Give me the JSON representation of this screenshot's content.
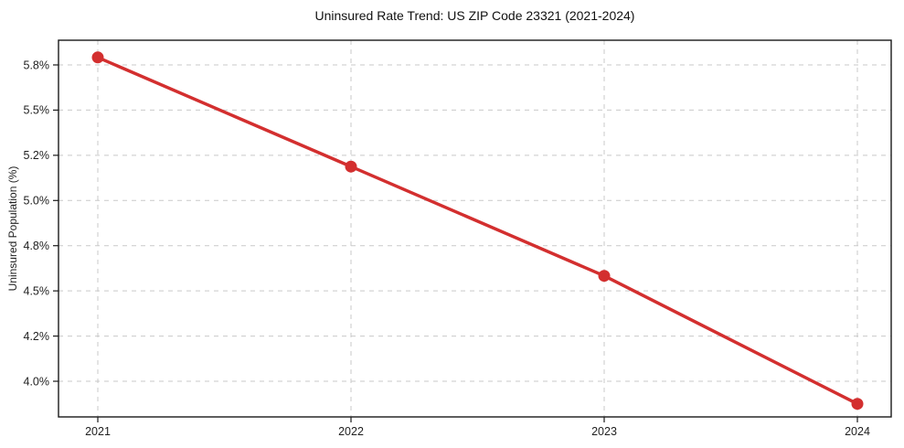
{
  "window": {
    "background": "#ffffff"
  },
  "chart_data": {
    "type": "line",
    "title": "Uninsured Rate Trend: US ZIP Code 23321 (2021-2024)",
    "ylabel": "Uninsured Population (%)",
    "xlabel": "",
    "x": [
      2021,
      2022,
      2023,
      2024
    ],
    "values": [
      5.85,
      5.15,
      4.6,
      3.9
    ],
    "x_tick_labels": [
      "2021",
      "2022",
      "2023",
      "2024"
    ],
    "y_tick_labels": [
      "5.8%",
      "5.5%",
      "5.2%",
      "5.0%",
      "4.8%",
      "4.5%",
      "4.2%",
      "4.0%"
    ],
    "y_tick_values": [
      5.8,
      5.5,
      5.2,
      5.0,
      4.8,
      4.5,
      4.2,
      4.0
    ],
    "grid": true,
    "grid_style": "dashed",
    "legend": false,
    "line_color": "#d32f2f",
    "marker": "circle",
    "grid_color": "#c9c9c9",
    "axis_color": "#1a1a1a",
    "text_color": "#1f1f1f"
  }
}
